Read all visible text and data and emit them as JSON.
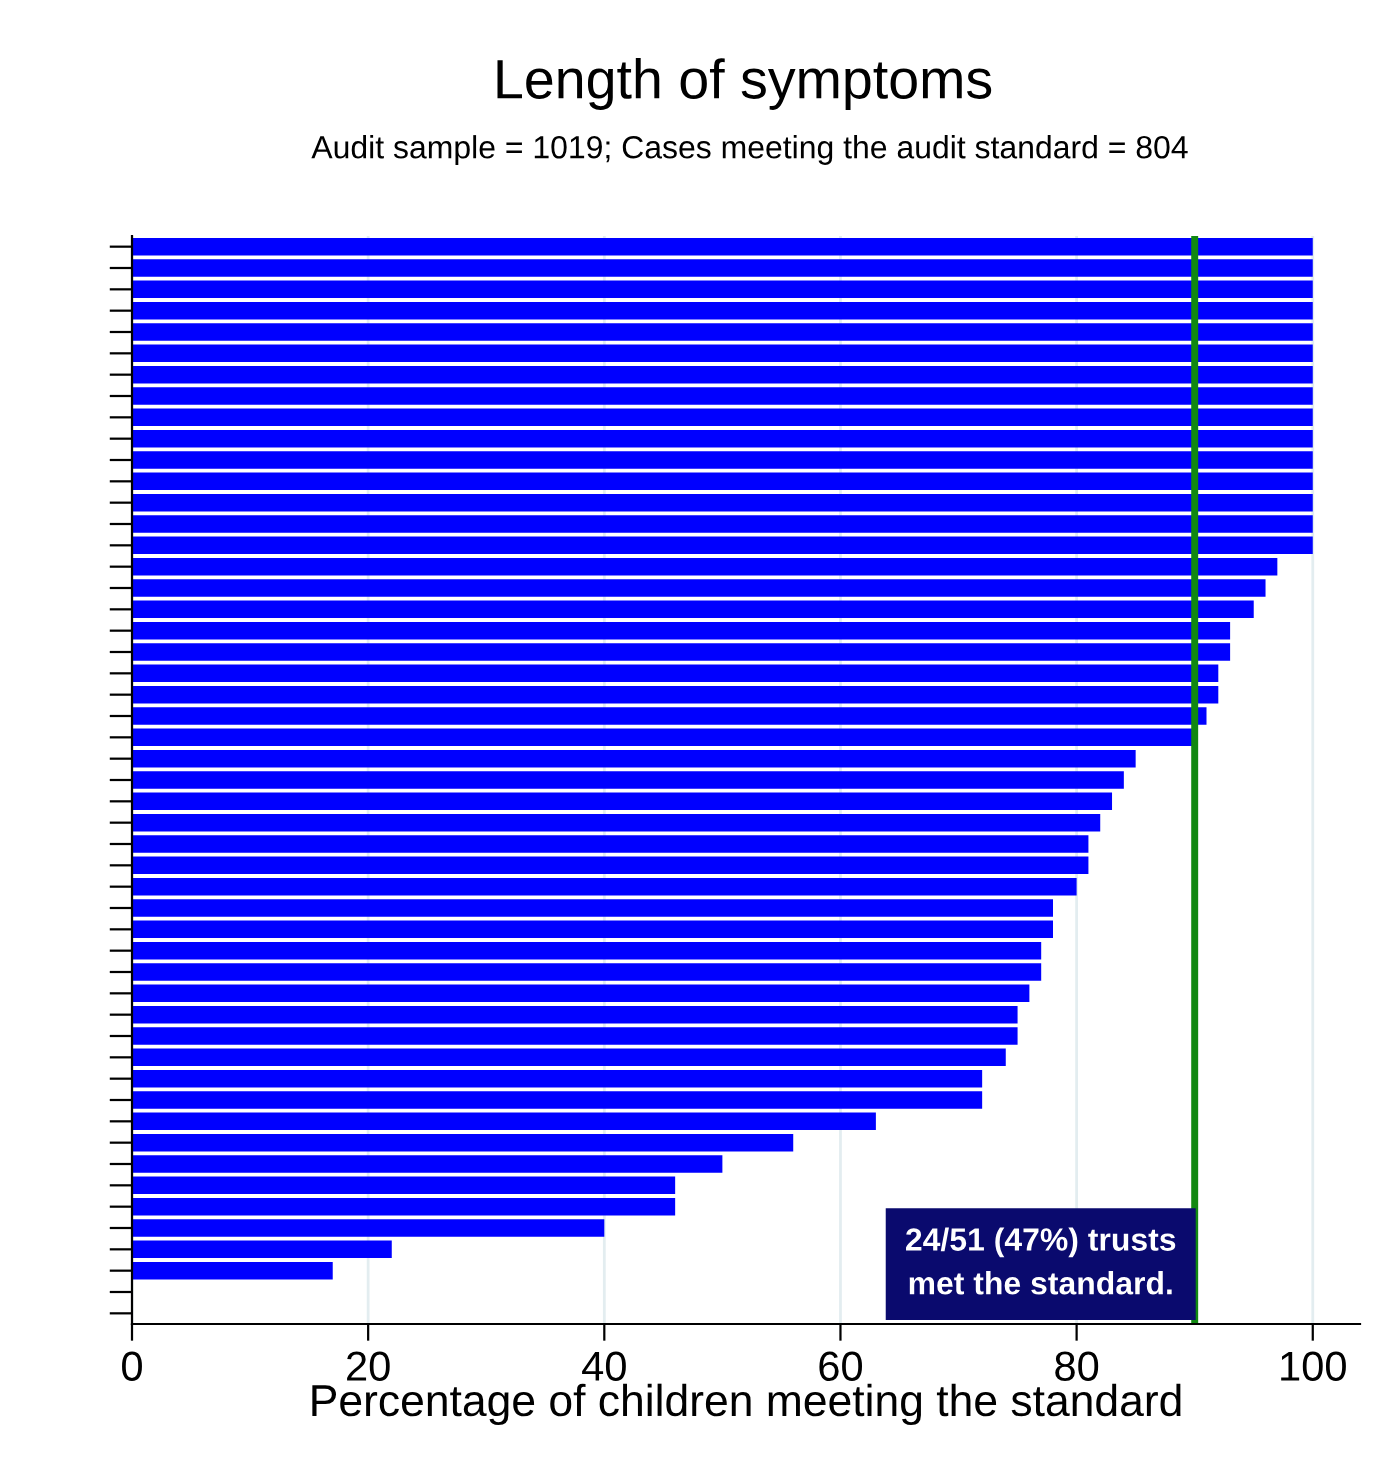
{
  "chart_data": {
    "type": "bar",
    "orientation": "horizontal",
    "title": "Length of symptoms",
    "subtitle": "Audit sample = 1019; Cases meeting the audit standard = 804",
    "xlabel": "Percentage of children meeting the standard",
    "categories": [
      null,
      null,
      null,
      null,
      null,
      null,
      null,
      null,
      null,
      null,
      null,
      null,
      null,
      null,
      null,
      null,
      null,
      null,
      null,
      null,
      null,
      null,
      null,
      null,
      null,
      null,
      null,
      null,
      null,
      null,
      null,
      null,
      null,
      null,
      null,
      null,
      null,
      null,
      null,
      null,
      null,
      null,
      null,
      null,
      null,
      null,
      null,
      null,
      null,
      null,
      null
    ],
    "values": [
      100,
      100,
      100,
      100,
      100,
      100,
      100,
      100,
      100,
      100,
      100,
      100,
      100,
      100,
      100,
      97,
      96,
      95,
      93,
      93,
      92,
      92,
      91,
      90,
      85,
      84,
      83,
      82,
      81,
      81,
      80,
      78,
      78,
      77,
      77,
      76,
      75,
      75,
      74,
      72,
      72,
      63,
      56,
      50,
      46,
      46,
      40,
      22,
      17,
      null,
      null
    ],
    "color": "#0000ff",
    "xlim": [
      0,
      104
    ],
    "xticks": [
      0,
      20,
      40,
      60,
      80,
      100
    ],
    "grid": "x",
    "ref_lines": [
      {
        "axis": "x",
        "value": 90,
        "label": null,
        "color": "#118811"
      }
    ],
    "annotations": [
      "24/51 (47%) trusts\nmet the standard."
    ]
  }
}
